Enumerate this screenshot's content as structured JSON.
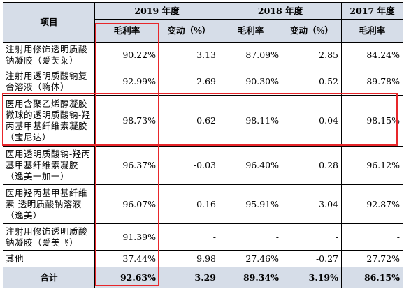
{
  "header": {
    "item_label": "项目",
    "year_2019": "2019 年度",
    "year_2018": "2018 年度",
    "year_2017": "2017 年度",
    "gross_margin": "毛利率",
    "change": "变动（%）"
  },
  "rows": [
    {
      "name": "注射用修饰透明质酸钠凝胶（爱芙莱）",
      "m2019": "90.22%",
      "c2019": "3.13",
      "m2018": "87.09%",
      "c2018": "2.85",
      "m2017": "84.24%"
    },
    {
      "name": "注射用透明质酸钠复合溶液（嗨体）",
      "m2019": "92.99%",
      "c2019": "2.69",
      "m2018": "90.30%",
      "c2018": "0.52",
      "m2017": "89.78%"
    },
    {
      "name": "医用含聚乙烯醇凝胶微球的透明质酸钠-羟丙基甲基纤维素凝胶（宝尼达）",
      "m2019": "98.73%",
      "c2019": "0.62",
      "m2018": "98.11%",
      "c2018": "-0.04",
      "m2017": "98.15%"
    },
    {
      "name": "医用透明质酸钠-羟丙基甲基纤维素凝胶（逸美一加一）",
      "m2019": "96.37%",
      "c2019": "-0.03",
      "m2018": "96.40%",
      "c2018": "0.28",
      "m2017": "96.12%"
    },
    {
      "name": "医用羟丙基甲基纤维素-透明质酸钠溶液（逸美）",
      "m2019": "96.07%",
      "c2019": "0.16",
      "m2018": "95.91%",
      "c2018": "3.04",
      "m2017": "92.87%"
    },
    {
      "name": "注射用修饰透明质酸钠凝胶（爱美飞）",
      "m2019": "91.39%",
      "c2019": "-",
      "m2018": "-",
      "c2018": "-",
      "m2017": "-"
    },
    {
      "name": "其他",
      "m2019": "37.44%",
      "c2019": "9.98",
      "m2018": "27.46%",
      "c2018": "-0.27",
      "m2017": "27.72%"
    }
  ],
  "total": {
    "name": "合计",
    "m2019": "92.63%",
    "c2019": "3.29",
    "m2018": "89.34%",
    "c2018": "3.19%",
    "m2017": "86.15%"
  },
  "colors": {
    "header_bg": "#d6dde8",
    "highlight": "#e8262a"
  }
}
